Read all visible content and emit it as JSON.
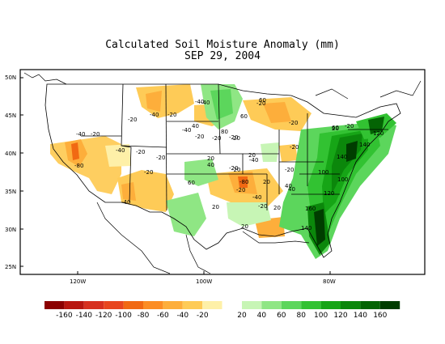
{
  "title": "Calculated Soil Moisture Anomaly (mm)",
  "date": "SEP 29, 2004",
  "lat_labels": [
    "50N",
    "45N",
    "40N",
    "35N",
    "30N",
    "25N"
  ],
  "lon_labels": [
    "120W",
    "100W",
    "80W"
  ],
  "contour_labels": [
    "-40",
    "-20",
    "-20",
    "-40",
    "-40",
    "-40",
    "-20",
    "-20",
    "-20",
    "-40",
    "-20",
    "-20",
    "-80",
    "-20",
    "-20",
    "-40",
    "-20",
    "-40",
    "-20",
    "-40",
    "60",
    "40",
    "60",
    "80",
    "20",
    "20",
    "20",
    "40",
    "60",
    "20",
    "-20",
    "-80",
    "-40",
    "-20",
    "-20",
    "20",
    "20",
    "20",
    "40",
    "20",
    "-20",
    "60",
    "140",
    "120",
    "140",
    "100",
    "100",
    "120",
    "160",
    "140",
    "40",
    "-20",
    "-20",
    "-20"
  ],
  "legend": {
    "labels": [
      "-160",
      "-140",
      "-120",
      "-100",
      "-80",
      "-60",
      "-40",
      "-20",
      "20",
      "40",
      "60",
      "80",
      "100",
      "120",
      "140",
      "160"
    ],
    "colors": [
      "#8b0000",
      "#b8160f",
      "#d7301f",
      "#e8461f",
      "#f16913",
      "#fc8d24",
      "#fdae3b",
      "#fecb57",
      "#fef0a8",
      "#ffffff",
      "#c7f5b5",
      "#8fe684",
      "#5cd65c",
      "#32c232",
      "#16a516",
      "#0b870b",
      "#046404",
      "#003d00"
    ]
  }
}
